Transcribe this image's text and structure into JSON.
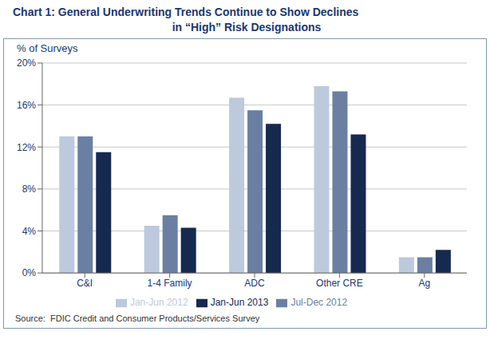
{
  "chart_data": {
    "type": "bar",
    "title": "Chart 1: General Underwriting Trends Continue to Show Declines\nin “High” Risk Designations",
    "y_label": "% of Surveys",
    "annotations": [
      "Source:  FDIC Credit and Consumer Products/Services Survey"
    ],
    "categories": [
      "C&I",
      "1-4 Family",
      "ADC",
      "Other CRE",
      "Ag"
    ],
    "series": [
      {
        "name": "Jan-Jun 2012",
        "color": "#bdc9dc",
        "values": [
          13.0,
          4.5,
          16.7,
          17.8,
          1.5
        ]
      },
      {
        "name": "Jul-Dec 2012",
        "color": "#6b7fa3",
        "values": [
          13.0,
          5.5,
          15.5,
          17.3,
          1.5
        ]
      },
      {
        "name": "Jan-Jun 2013",
        "color": "#16294f",
        "values": [
          11.5,
          4.3,
          14.2,
          13.2,
          2.2
        ]
      }
    ],
    "ylim": [
      0,
      20
    ],
    "yticks": [
      {
        "value": 0,
        "label": "0%"
      },
      {
        "value": 4,
        "label": "4%"
      },
      {
        "value": 8,
        "label": "8%"
      },
      {
        "value": 12,
        "label": "12%"
      },
      {
        "value": 16,
        "label": "16%"
      },
      {
        "value": 20,
        "label": "20%"
      }
    ],
    "grid": true,
    "legend": "bottom"
  }
}
